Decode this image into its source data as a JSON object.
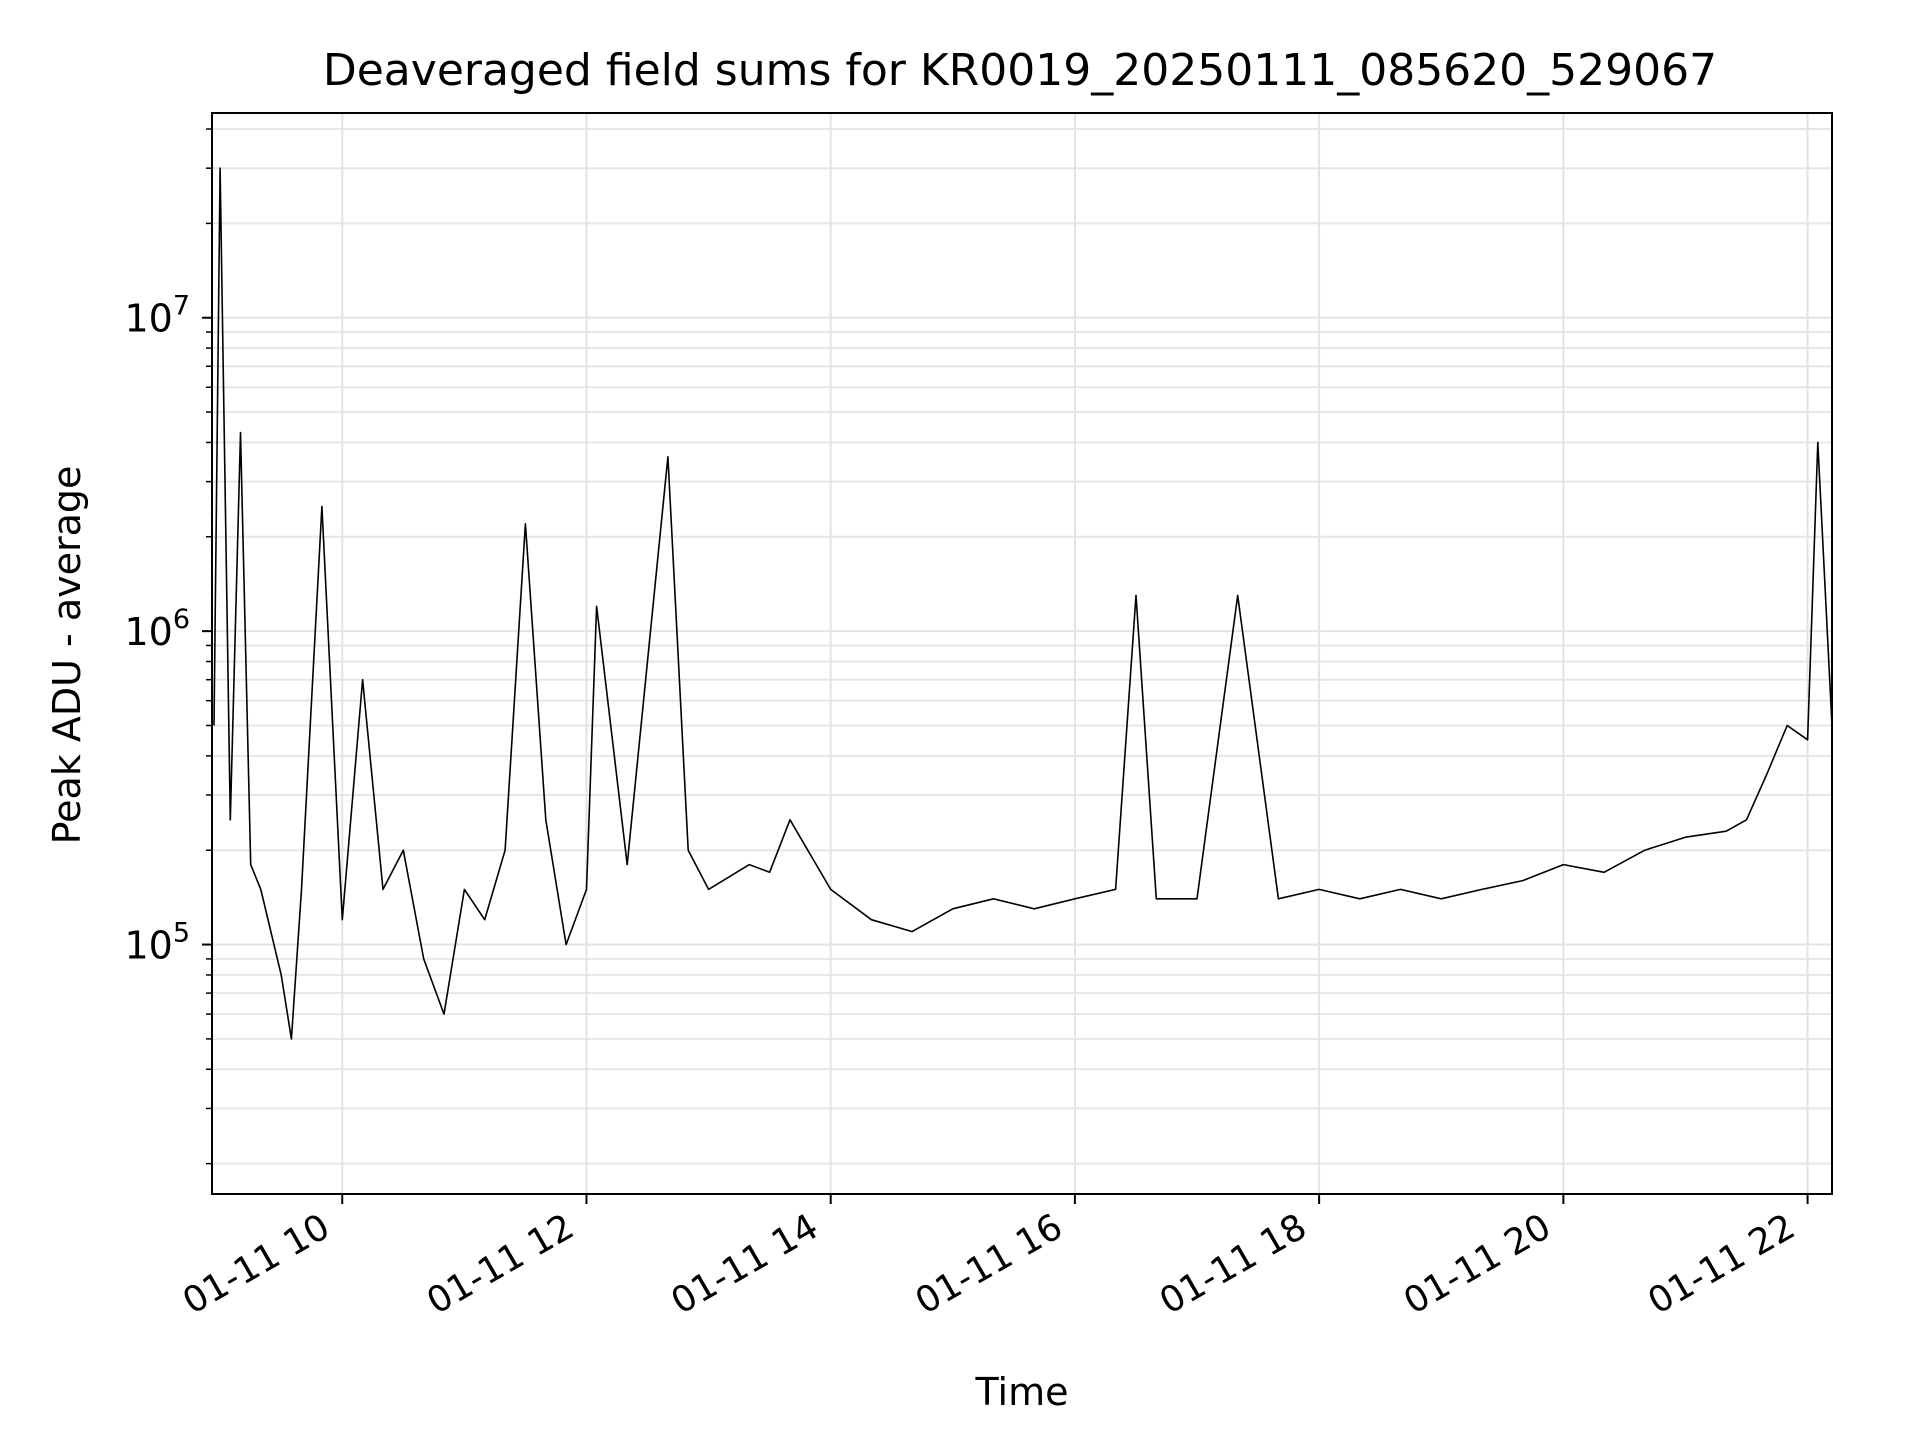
{
  "chart_data": {
    "type": "line",
    "title": "Deaveraged field sums for KR0019_20250111_085620_529067",
    "xlabel": "Time",
    "ylabel": "Peak ADU - average",
    "yscale": "log",
    "xlim": [
      "2025-01-11 08:56",
      "2025-01-11 22:12"
    ],
    "ylim": [
      16000,
      45000000
    ],
    "grid": true,
    "x_ticks": [
      {
        "value": "2025-01-11 10:00",
        "label": "01-11 10"
      },
      {
        "value": "2025-01-11 12:00",
        "label": "01-11 12"
      },
      {
        "value": "2025-01-11 14:00",
        "label": "01-11 14"
      },
      {
        "value": "2025-01-11 16:00",
        "label": "01-11 16"
      },
      {
        "value": "2025-01-11 18:00",
        "label": "01-11 18"
      },
      {
        "value": "2025-01-11 20:00",
        "label": "01-11 20"
      },
      {
        "value": "2025-01-11 22:00",
        "label": "01-11 22"
      }
    ],
    "y_ticks": [
      {
        "value": 100000,
        "base": "10",
        "exp": "5"
      },
      {
        "value": 1000000,
        "base": "10",
        "exp": "6"
      },
      {
        "value": 10000000,
        "base": "10",
        "exp": "7"
      }
    ],
    "series": [
      {
        "color": "#000000",
        "x": [
          "2025-01-11 08:57",
          "2025-01-11 09:00",
          "2025-01-11 09:05",
          "2025-01-11 09:10",
          "2025-01-11 09:15",
          "2025-01-11 09:20",
          "2025-01-11 09:30",
          "2025-01-11 09:35",
          "2025-01-11 09:40",
          "2025-01-11 09:50",
          "2025-01-11 10:00",
          "2025-01-11 10:10",
          "2025-01-11 10:20",
          "2025-01-11 10:30",
          "2025-01-11 10:40",
          "2025-01-11 10:50",
          "2025-01-11 11:00",
          "2025-01-11 11:10",
          "2025-01-11 11:20",
          "2025-01-11 11:30",
          "2025-01-11 11:40",
          "2025-01-11 11:50",
          "2025-01-11 12:00",
          "2025-01-11 12:05",
          "2025-01-11 12:20",
          "2025-01-11 12:40",
          "2025-01-11 12:50",
          "2025-01-11 13:00",
          "2025-01-11 13:20",
          "2025-01-11 13:30",
          "2025-01-11 13:40",
          "2025-01-11 14:00",
          "2025-01-11 14:20",
          "2025-01-11 14:40",
          "2025-01-11 15:00",
          "2025-01-11 15:20",
          "2025-01-11 15:40",
          "2025-01-11 16:00",
          "2025-01-11 16:20",
          "2025-01-11 16:30",
          "2025-01-11 16:40",
          "2025-01-11 17:00",
          "2025-01-11 17:20",
          "2025-01-11 17:40",
          "2025-01-11 18:00",
          "2025-01-11 18:20",
          "2025-01-11 18:40",
          "2025-01-11 19:00",
          "2025-01-11 19:20",
          "2025-01-11 19:40",
          "2025-01-11 20:00",
          "2025-01-11 20:20",
          "2025-01-11 20:40",
          "2025-01-11 21:00",
          "2025-01-11 21:20",
          "2025-01-11 21:30",
          "2025-01-11 21:40",
          "2025-01-11 21:50",
          "2025-01-11 22:00",
          "2025-01-11 22:05",
          "2025-01-11 22:12"
        ],
        "y": [
          500000,
          30000000,
          250000,
          4300000,
          180000,
          150000,
          80000,
          50000,
          150000,
          2500000,
          120000,
          700000,
          150000,
          200000,
          90000,
          60000,
          150000,
          120000,
          200000,
          2200000,
          250000,
          100000,
          150000,
          1200000,
          180000,
          3600000,
          200000,
          150000,
          180000,
          170000,
          250000,
          150000,
          120000,
          110000,
          130000,
          140000,
          130000,
          140000,
          150000,
          1300000,
          140000,
          140000,
          1300000,
          140000,
          150000,
          140000,
          150000,
          140000,
          150000,
          160000,
          180000,
          170000,
          200000,
          220000,
          230000,
          250000,
          350000,
          500000,
          450000,
          4000000,
          500000
        ]
      }
    ]
  }
}
